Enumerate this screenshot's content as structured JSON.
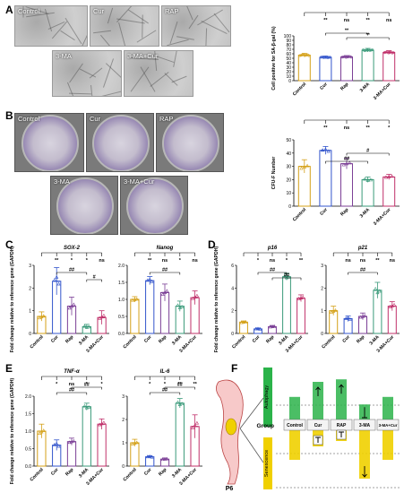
{
  "panels": {
    "a": "A",
    "b": "B",
    "c": "C",
    "d": "D",
    "e": "E",
    "f": "F"
  },
  "colors": {
    "control": "#d4a017",
    "cur": "#3355cc",
    "rap": "#7b3f96",
    "ma3": "#3a9a7a",
    "macur": "#c0306a",
    "autophagy": "#2bb34a",
    "senescence": "#f0d000"
  },
  "photos_a": [
    {
      "label": "Control"
    },
    {
      "label": "Cur"
    },
    {
      "label": "RAP"
    },
    {
      "label": "3-MA"
    },
    {
      "label": "3-MA+Cur"
    }
  ],
  "photos_b": [
    {
      "label": "Control"
    },
    {
      "label": "Cur"
    },
    {
      "label": "RAP"
    },
    {
      "label": "3-MA"
    },
    {
      "label": "3-MA+Cur"
    }
  ],
  "chart_data": [
    {
      "id": "A",
      "type": "bar",
      "ylabel": "Cell positive for SA-β-gal (%)",
      "categories": [
        "Control",
        "Cur",
        "Rap",
        "3-MA",
        "3-MA+Cur"
      ],
      "values": [
        57,
        52,
        53,
        68,
        63
      ],
      "errors": [
        4,
        3,
        3,
        4,
        4
      ],
      "ylim": [
        0,
        100
      ],
      "yticks": [
        "0",
        "10",
        "20",
        "30",
        "40",
        "50",
        "60",
        "70",
        "80",
        "90",
        "100"
      ],
      "sig_top": [
        "**",
        "ns",
        "**",
        "ns"
      ],
      "sig_brackets": [
        "**",
        "**"
      ]
    },
    {
      "id": "B",
      "type": "bar",
      "ylabel": "CFU-F Number",
      "categories": [
        "Control",
        "Cur",
        "Rap",
        "3-MA",
        "3-MA+Cur"
      ],
      "values": [
        30,
        42,
        32,
        20,
        22
      ],
      "errors": [
        5,
        3,
        4,
        2,
        2
      ],
      "ylim": [
        0,
        50
      ],
      "yticks": [
        "0",
        "10",
        "20",
        "30",
        "40",
        "50"
      ],
      "sig_top": [
        "**",
        "ns",
        "**",
        "*"
      ],
      "sig_brackets": [
        "##",
        "#"
      ]
    },
    {
      "id": "C1",
      "type": "bar",
      "title": "SOX-2",
      "ylabel": "Fold change relative to reference gene (GAPDH)",
      "categories": [
        "Control",
        "Cur",
        "Rap",
        "3-MA",
        "3-MA+Cur"
      ],
      "values": [
        0.75,
        2.3,
        1.2,
        0.3,
        0.7
      ],
      "errors": [
        0.2,
        0.6,
        0.4,
        0.1,
        0.3
      ],
      "ylim": [
        0,
        3
      ],
      "yticks": [
        "0",
        "1",
        "2",
        "3"
      ],
      "sig_top": [
        "**",
        "*",
        "*",
        "ns"
      ],
      "sig_brackets": [
        "##",
        "#"
      ]
    },
    {
      "id": "C2",
      "type": "bar",
      "title": "Nanog",
      "categories": [
        "Control",
        "Cur",
        "Rap",
        "3-MA",
        "3-MA+Cur"
      ],
      "values": [
        1.0,
        1.55,
        1.2,
        0.8,
        1.05
      ],
      "errors": [
        0.08,
        0.12,
        0.25,
        0.15,
        0.2
      ],
      "ylim": [
        0,
        2.0
      ],
      "yticks": [
        "0.0",
        "0.5",
        "1.0",
        "1.5",
        "2.0"
      ],
      "sig_top": [
        "**",
        "ns",
        "*",
        "ns"
      ],
      "sig_brackets": [
        "##"
      ]
    },
    {
      "id": "D1",
      "type": "bar",
      "title": "p16",
      "ylabel": "Fold change relative to reference gene (GAPDH)",
      "categories": [
        "Control",
        "Cur",
        "Rap",
        "3-MA",
        "3-MA+Cur"
      ],
      "values": [
        1.0,
        0.4,
        0.6,
        5.0,
        3.1
      ],
      "errors": [
        0.1,
        0.08,
        0.1,
        0.3,
        0.3
      ],
      "ylim": [
        0,
        6
      ],
      "yticks": [
        "0",
        "2",
        "4",
        "6"
      ],
      "sig_top": [
        "*",
        "ns",
        "*",
        "**"
      ],
      "sig_brackets": [
        "##",
        "##"
      ]
    },
    {
      "id": "D2",
      "type": "bar",
      "title": "p21",
      "categories": [
        "Control",
        "Cur",
        "Rap",
        "3-MA",
        "3-MA+Cur"
      ],
      "values": [
        1.0,
        0.65,
        0.75,
        1.9,
        1.2
      ],
      "errors": [
        0.2,
        0.12,
        0.15,
        0.35,
        0.2
      ],
      "ylim": [
        0,
        3
      ],
      "yticks": [
        "0",
        "1",
        "2",
        "3"
      ],
      "sig_top": [
        "ns",
        "ns",
        "**",
        "ns"
      ],
      "sig_brackets": [
        "##"
      ]
    },
    {
      "id": "E1",
      "type": "bar",
      "title": "TNF-α",
      "ylabel": "Fold change relative to reference gene (GAPDH)",
      "categories": [
        "Control",
        "Cur",
        "Rap",
        "3-MA",
        "3-MA+Cur"
      ],
      "values": [
        1.0,
        0.6,
        0.7,
        1.7,
        1.2
      ],
      "errors": [
        0.2,
        0.15,
        0.1,
        0.1,
        0.15
      ],
      "ylim": [
        0,
        2.0
      ],
      "yticks": [
        "0.0",
        "0.5",
        "1.0",
        "1.5",
        "2.0"
      ],
      "sig_top": [
        "*",
        "ns",
        "*",
        "*"
      ],
      "sig_brackets": [
        "##",
        "##"
      ]
    },
    {
      "id": "E2",
      "type": "bar",
      "title": "IL-6",
      "categories": [
        "Control",
        "Cur",
        "Rap",
        "3-MA",
        "3-MA+Cur"
      ],
      "values": [
        1.0,
        0.4,
        0.3,
        2.7,
        1.7
      ],
      "errors": [
        0.15,
        0.05,
        0.05,
        0.2,
        0.5
      ],
      "ylim": [
        0,
        3
      ],
      "yticks": [
        "0",
        "1",
        "2",
        "3"
      ],
      "sig_top": [
        "*",
        "*",
        "**",
        "**"
      ],
      "sig_brackets": [
        "##",
        "##"
      ]
    }
  ],
  "diagram_f": {
    "autophagy_label": "Autophagy",
    "senescence_label": "Senescence",
    "group_label": "Group",
    "cell_label": "P6",
    "groups": [
      "Control",
      "Cur",
      "RAP",
      "3-MA",
      "3-MA+Cur"
    ],
    "autophagy_levels": [
      0.45,
      0.75,
      0.8,
      0.3,
      0.45
    ],
    "senescence_levels": [
      0.55,
      0.3,
      0.2,
      0.9,
      0.55
    ],
    "autophagy_arrows": [
      "",
      "up",
      "up",
      "down",
      ""
    ],
    "senescence_arrows": [
      "",
      "down",
      "down",
      "up",
      ""
    ]
  }
}
